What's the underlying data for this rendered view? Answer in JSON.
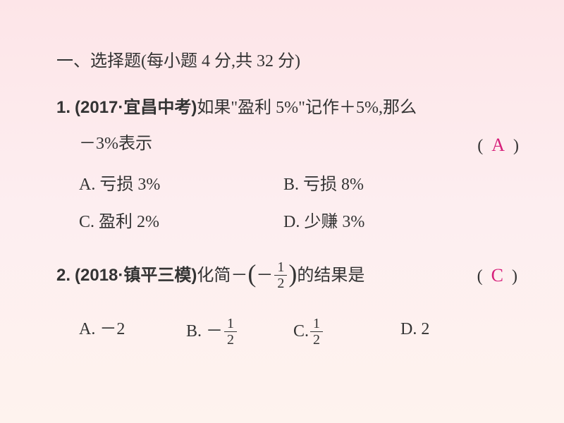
{
  "colors": {
    "text": "#333333",
    "answer": "#d61f7a",
    "bg_top": "#fde5e8",
    "bg_bottom": "#fef3ee"
  },
  "section_header": "一、选择题(每小题 4 分,共 32 分)",
  "q1": {
    "prefix": "1.",
    "source": "(2017·宜昌中考)",
    "text_part1": "如果\"盈利 5%\"记作＋5%,那么",
    "text_part2": "－3%表示",
    "paren_open": "(",
    "paren_close": ")",
    "answer": "A",
    "options": {
      "A": "A. 亏损 3%",
      "B": "B. 亏损 8%",
      "C": "C. 盈利 2%",
      "D": "D. 少赚 3%"
    }
  },
  "q2": {
    "prefix": "2.",
    "source": "(2018·镇平三模)",
    "text_before": "化简－",
    "text_after": "的结果是",
    "inner_sign": "－",
    "frac_num": "1",
    "frac_den": "2",
    "paren_open": "(",
    "paren_close": ")",
    "answer": "C",
    "options": {
      "A_label": "A. －2",
      "B_label": "B. －",
      "B_num": "1",
      "B_den": "2",
      "C_label": "C. ",
      "C_num": "1",
      "C_den": "2",
      "D_label": "D. 2"
    }
  }
}
